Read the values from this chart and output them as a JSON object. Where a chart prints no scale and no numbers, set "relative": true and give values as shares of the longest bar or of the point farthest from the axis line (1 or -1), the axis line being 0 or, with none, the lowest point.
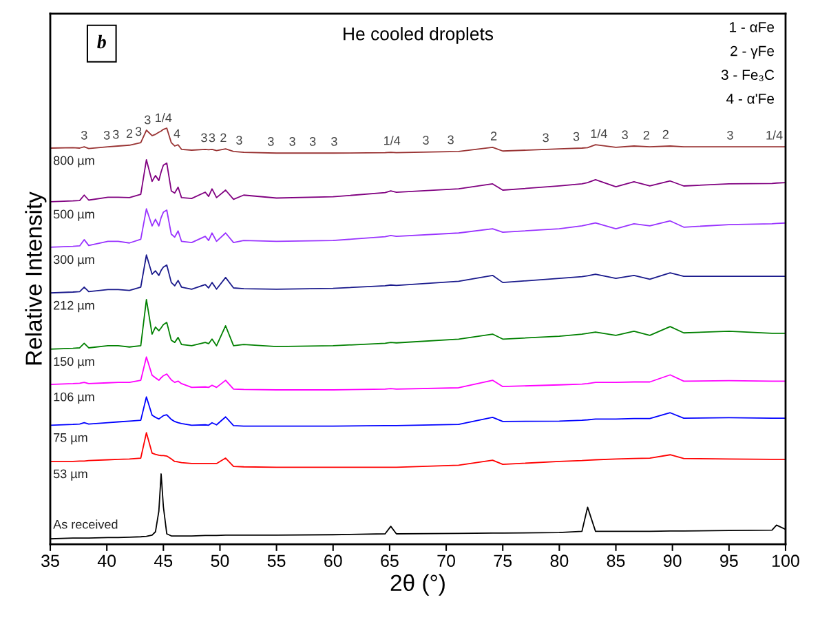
{
  "chart_data": {
    "type": "line",
    "title": "He cooled droplets",
    "xlabel": "2θ (°)",
    "ylabel": "Relative Intensity",
    "relative": true,
    "legend": false,
    "grid": false,
    "tick_labels": "x",
    "marker": "none",
    "line_style": "solid",
    "xlim": [
      35,
      100
    ],
    "xticks": [
      35,
      40,
      45,
      50,
      55,
      60,
      65,
      70,
      75,
      80,
      85,
      90,
      95,
      100
    ],
    "x": [
      35,
      37,
      37.6,
      38,
      38.4,
      40.1,
      41,
      42,
      43,
      43.5,
      44,
      44.3,
      44.6,
      44.8,
      45,
      45.3,
      45.7,
      46,
      46.3,
      46.6,
      47.5,
      48.7,
      49,
      49.3,
      49.7,
      50.5,
      51.2,
      52.1,
      55,
      60,
      64.6,
      65.1,
      65.6,
      71.1,
      74.1,
      75,
      80,
      82,
      82.5,
      83.2,
      85,
      86.6,
      88,
      89.8,
      91,
      95,
      98.8,
      99.2,
      100
    ],
    "series": [
      {
        "name": "800 µm",
        "color": "#993333",
        "values": [
          0.952,
          0.953,
          0.952,
          0.955,
          0.951,
          0.955,
          0.957,
          0.959,
          0.965,
          0.995,
          0.982,
          0.985,
          0.99,
          0.993,
          0.997,
          1,
          0.965,
          0.957,
          0.96,
          0.949,
          0.947,
          0.949,
          0.948,
          0.949,
          0.946,
          0.95,
          0.944,
          0.942,
          0.94,
          0.94,
          0.941,
          0.942,
          0.941,
          0.944,
          0.954,
          0.945,
          0.95,
          0.952,
          0.953,
          0.96,
          0.954,
          0.957,
          0.955,
          0.957,
          0.955,
          0.955,
          0.955,
          0.955,
          0.955
        ]
      },
      {
        "name": "500 µm",
        "color": "#800080",
        "values": [
          0.823,
          0.825,
          0.826,
          0.839,
          0.827,
          0.834,
          0.834,
          0.833,
          0.841,
          0.924,
          0.872,
          0.886,
          0.874,
          0.895,
          0.911,
          0.916,
          0.849,
          0.844,
          0.858,
          0.833,
          0.831,
          0.846,
          0.836,
          0.854,
          0.833,
          0.851,
          0.829,
          0.839,
          0.832,
          0.835,
          0.845,
          0.849,
          0.846,
          0.854,
          0.866,
          0.851,
          0.861,
          0.866,
          0.869,
          0.876,
          0.859,
          0.871,
          0.861,
          0.873,
          0.861,
          0.866,
          0.867,
          0.868,
          0.869
        ]
      },
      {
        "name": "300 µm",
        "color": "#9933ff",
        "values": [
          0.714,
          0.716,
          0.717,
          0.732,
          0.718,
          0.728,
          0.728,
          0.724,
          0.733,
          0.806,
          0.765,
          0.781,
          0.765,
          0.785,
          0.798,
          0.803,
          0.745,
          0.738,
          0.753,
          0.728,
          0.725,
          0.74,
          0.73,
          0.748,
          0.728,
          0.748,
          0.725,
          0.73,
          0.728,
          0.73,
          0.739,
          0.742,
          0.74,
          0.748,
          0.758,
          0.75,
          0.758,
          0.765,
          0.768,
          0.772,
          0.758,
          0.77,
          0.765,
          0.777,
          0.762,
          0.768,
          0.77,
          0.771,
          0.772
        ]
      },
      {
        "name": "212 µm",
        "color": "#1a1a8c",
        "values": [
          0.604,
          0.606,
          0.607,
          0.618,
          0.607,
          0.612,
          0.612,
          0.61,
          0.618,
          0.695,
          0.649,
          0.657,
          0.646,
          0.658,
          0.666,
          0.671,
          0.629,
          0.621,
          0.634,
          0.618,
          0.613,
          0.624,
          0.616,
          0.629,
          0.613,
          0.641,
          0.616,
          0.614,
          0.613,
          0.615,
          0.621,
          0.623,
          0.622,
          0.632,
          0.646,
          0.629,
          0.639,
          0.643,
          0.645,
          0.649,
          0.639,
          0.646,
          0.637,
          0.652,
          0.644,
          0.644,
          0.644,
          0.644,
          0.644
        ]
      },
      {
        "name": "150 µm",
        "color": "#008000",
        "values": [
          0.469,
          0.471,
          0.472,
          0.483,
          0.472,
          0.477,
          0.477,
          0.474,
          0.477,
          0.588,
          0.505,
          0.522,
          0.513,
          0.52,
          0.528,
          0.533,
          0.49,
          0.485,
          0.497,
          0.48,
          0.477,
          0.485,
          0.482,
          0.493,
          0.477,
          0.525,
          0.477,
          0.48,
          0.475,
          0.477,
          0.483,
          0.485,
          0.484,
          0.493,
          0.505,
          0.493,
          0.5,
          0.505,
          0.507,
          0.51,
          0.502,
          0.512,
          0.502,
          0.523,
          0.508,
          0.512,
          0.507,
          0.507,
          0.507
        ]
      },
      {
        "name": "106 µm",
        "color": "#ff00ff",
        "values": [
          0.384,
          0.386,
          0.387,
          0.389,
          0.386,
          0.388,
          0.389,
          0.389,
          0.394,
          0.45,
          0.406,
          0.4,
          0.394,
          0.4,
          0.405,
          0.409,
          0.395,
          0.389,
          0.392,
          0.386,
          0.377,
          0.378,
          0.377,
          0.382,
          0.377,
          0.394,
          0.373,
          0.372,
          0.371,
          0.371,
          0.373,
          0.374,
          0.373,
          0.376,
          0.394,
          0.379,
          0.383,
          0.385,
          0.386,
          0.389,
          0.389,
          0.39,
          0.39,
          0.407,
          0.392,
          0.393,
          0.392,
          0.392,
          0.392
        ]
      },
      {
        "name": "75 µm",
        "color": "#0000ff",
        "values": [
          0.286,
          0.288,
          0.289,
          0.292,
          0.289,
          0.292,
          0.294,
          0.296,
          0.298,
          0.354,
          0.31,
          0.305,
          0.301,
          0.305,
          0.309,
          0.311,
          0.3,
          0.295,
          0.292,
          0.29,
          0.286,
          0.287,
          0.286,
          0.292,
          0.287,
          0.306,
          0.285,
          0.284,
          0.284,
          0.284,
          0.285,
          0.285,
          0.285,
          0.288,
          0.305,
          0.295,
          0.296,
          0.298,
          0.299,
          0.301,
          0.301,
          0.302,
          0.302,
          0.316,
          0.303,
          0.304,
          0.303,
          0.303,
          0.303
        ]
      },
      {
        "name": "53 µm",
        "color": "#ff0000",
        "values": [
          0.199,
          0.199,
          0.2,
          0.2,
          0.201,
          0.203,
          0.204,
          0.205,
          0.207,
          0.268,
          0.219,
          0.216,
          0.214,
          0.213,
          0.213,
          0.212,
          0.205,
          0.199,
          0.198,
          0.196,
          0.194,
          0.194,
          0.194,
          0.194,
          0.194,
          0.207,
          0.187,
          0.186,
          0.185,
          0.185,
          0.185,
          0.185,
          0.185,
          0.19,
          0.202,
          0.192,
          0.199,
          0.201,
          0.202,
          0.203,
          0.205,
          0.206,
          0.207,
          0.215,
          0.206,
          0.205,
          0.204,
          0.204,
          0.204
        ]
      },
      {
        "name": "As received",
        "color": "#000000",
        "values": [
          0.013,
          0.015,
          0.015,
          0.015,
          0.015,
          0.016,
          0.016,
          0.017,
          0.018,
          0.019,
          0.022,
          0.03,
          0.08,
          0.169,
          0.09,
          0.025,
          0.02,
          0.02,
          0.02,
          0.02,
          0.02,
          0.021,
          0.021,
          0.021,
          0.021,
          0.022,
          0.022,
          0.022,
          0.022,
          0.023,
          0.025,
          0.043,
          0.025,
          0.026,
          0.027,
          0.027,
          0.028,
          0.031,
          0.089,
          0.031,
          0.031,
          0.031,
          0.031,
          0.032,
          0.032,
          0.033,
          0.034,
          0.046,
          0.036
        ]
      }
    ],
    "annotations": [
      "b",
      "1 - αFe",
      "2 - γFe",
      "3 - Fe₃C",
      "4 - α'Fe",
      {
        "text": "3",
        "x": 38.0,
        "y": 0.955
      },
      {
        "text": "3",
        "x": 40.0,
        "y": 0.955
      },
      {
        "text": "3",
        "x": 40.8,
        "y": 0.957
      },
      {
        "text": "2",
        "x": 42.0,
        "y": 0.959
      },
      {
        "text": "3",
        "x": 42.8,
        "y": 0.964
      },
      {
        "text": "3",
        "x": 43.6,
        "y": 0.992
      },
      {
        "text": "1/4",
        "x": 45.0,
        "y": 0.997
      },
      {
        "text": "4",
        "x": 46.2,
        "y": 0.959
      },
      {
        "text": "3",
        "x": 48.6,
        "y": 0.949
      },
      {
        "text": "3",
        "x": 49.3,
        "y": 0.949
      },
      {
        "text": "2",
        "x": 50.3,
        "y": 0.949
      },
      {
        "text": "3",
        "x": 51.7,
        "y": 0.943
      },
      {
        "text": "3",
        "x": 54.5,
        "y": 0.94
      },
      {
        "text": "3",
        "x": 56.4,
        "y": 0.94
      },
      {
        "text": "3",
        "x": 58.2,
        "y": 0.94
      },
      {
        "text": "3",
        "x": 60.1,
        "y": 0.94
      },
      {
        "text": "1/4",
        "x": 65.2,
        "y": 0.942
      },
      {
        "text": "3",
        "x": 68.2,
        "y": 0.943
      },
      {
        "text": "3",
        "x": 70.4,
        "y": 0.944
      },
      {
        "text": "2",
        "x": 74.2,
        "y": 0.953
      },
      {
        "text": "3",
        "x": 78.8,
        "y": 0.949
      },
      {
        "text": "3",
        "x": 81.5,
        "y": 0.952
      },
      {
        "text": "1/4",
        "x": 83.5,
        "y": 0.959
      },
      {
        "text": "3",
        "x": 85.8,
        "y": 0.956
      },
      {
        "text": "2",
        "x": 87.7,
        "y": 0.955
      },
      {
        "text": "2",
        "x": 89.4,
        "y": 0.957
      },
      {
        "text": "3",
        "x": 95.1,
        "y": 0.955
      },
      {
        "text": "1/4",
        "x": 99.0,
        "y": 0.955
      }
    ]
  }
}
